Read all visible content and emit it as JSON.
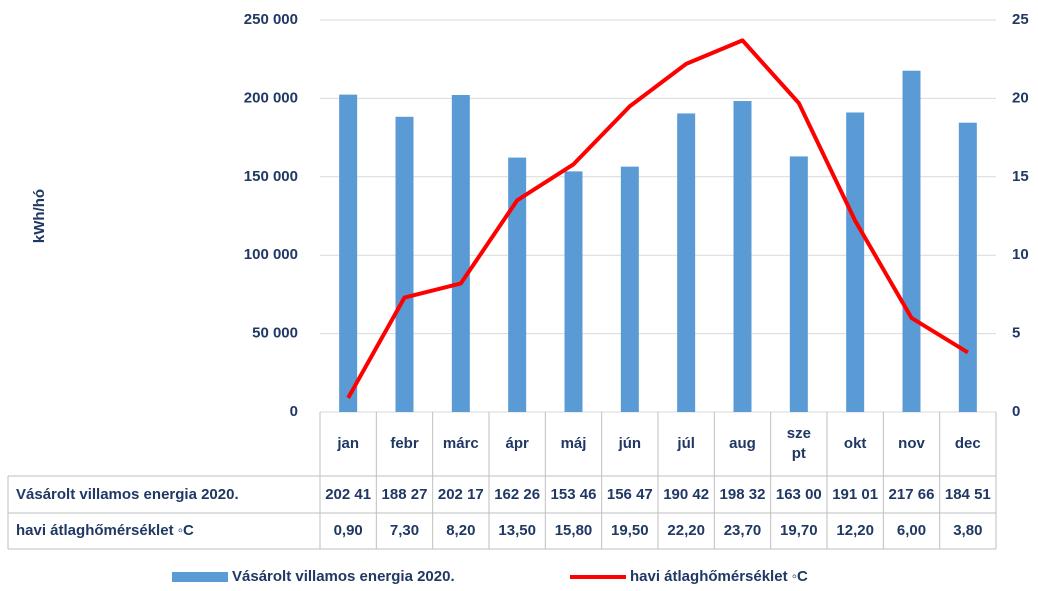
{
  "chart_data": {
    "type": "bar-line",
    "y_label": "kWh/hó",
    "categories": [
      "jan",
      "febr",
      "márc",
      "ápr",
      "máj",
      "jún",
      "júl",
      "aug",
      "szept",
      "okt",
      "nov",
      "dec"
    ],
    "series": [
      {
        "name": "Vásárolt villamos energia 2020.",
        "type": "bar",
        "color": "#5b9bd5",
        "values": [
          202410,
          188270,
          202170,
          162260,
          153460,
          156470,
          190420,
          198320,
          163000,
          191010,
          217660,
          184510
        ],
        "value_labels": [
          "202 41",
          "188 27",
          "202 17",
          "162 26",
          "153 46",
          "156 47",
          "190 42",
          "198 32",
          "163 00",
          "191 01",
          "217 66",
          "184 51"
        ]
      },
      {
        "name": "havi átlaghőmérséklet ◦C",
        "type": "line",
        "color": "#ff0000",
        "axis": "y2",
        "values": [
          0.9,
          7.3,
          8.2,
          13.5,
          15.8,
          19.5,
          22.2,
          23.7,
          19.7,
          12.2,
          6.0,
          3.8
        ],
        "value_labels": [
          "0,90",
          "7,30",
          "8,20",
          "13,50",
          "15,80",
          "19,50",
          "22,20",
          "23,70",
          "19,70",
          "12,20",
          "6,00",
          "3,80"
        ]
      }
    ],
    "ylim": [
      0,
      250000
    ],
    "yticks": [
      0,
      {
        "value": 50000,
        "label": "50 000"
      },
      {
        "value": 100000,
        "label": "100 000"
      },
      {
        "value": 150000,
        "label": "150 000"
      },
      {
        "value": 200000,
        "label": "200 000"
      },
      {
        "value": 250000,
        "label": "250 000"
      }
    ],
    "y2lim": [
      0,
      25
    ],
    "y2ticks": [
      0,
      5,
      10,
      15,
      20,
      25
    ],
    "grid": true,
    "legend": "bottom"
  }
}
